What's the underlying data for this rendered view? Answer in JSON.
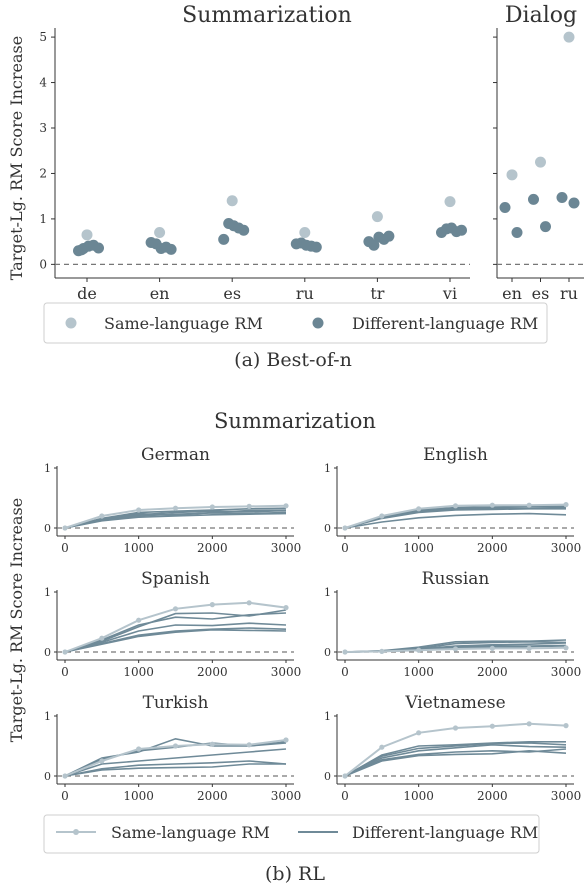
{
  "figure_a": {
    "caption": "(a) Best-of-n",
    "ylabel": "Target-Lg. RM Score Increase",
    "legend": {
      "same": "Same-language RM",
      "diff": "Different-language RM"
    }
  },
  "figure_b": {
    "title": "Summarization",
    "caption": "(b) RL",
    "ylabel": "Target-Lg. RM Score Increase",
    "legend": {
      "same": "Same-language RM",
      "diff": "Different-language RM"
    }
  },
  "colors": {
    "same": "#b5c4cc",
    "diff": "#6b8694",
    "line_diff": "#6f8a98",
    "zero": "#777777"
  },
  "chart_data": [
    {
      "type": "scatter",
      "title": "Summarization",
      "categories": [
        "de",
        "en",
        "es",
        "ru",
        "tr",
        "vi"
      ],
      "ylim": [
        -0.3,
        5.2
      ],
      "yticks": [
        0,
        1,
        2,
        3,
        4,
        5
      ],
      "series": [
        {
          "name": "Same-language RM",
          "values": [
            [
              0.65
            ],
            [
              0.7
            ],
            [
              1.4
            ],
            [
              0.7
            ],
            [
              1.05
            ],
            [
              1.38
            ]
          ]
        },
        {
          "name": "Different-language RM",
          "values": [
            [
              0.3,
              0.35,
              0.4,
              0.42,
              0.36,
              0.32
            ],
            [
              0.48,
              0.45,
              0.35,
              0.38,
              0.33
            ],
            [
              0.55,
              0.9,
              0.85,
              0.8,
              0.75
            ],
            [
              0.45,
              0.47,
              0.42,
              0.4,
              0.38
            ],
            [
              0.5,
              0.42,
              0.6,
              0.55,
              0.62
            ],
            [
              0.7,
              0.78,
              0.8,
              0.72,
              0.75
            ]
          ]
        }
      ]
    },
    {
      "type": "scatter",
      "title": "Dialog",
      "categories": [
        "en",
        "es",
        "ru"
      ],
      "ylim": [
        -0.3,
        5.2
      ],
      "series": [
        {
          "name": "Same-language RM",
          "values": [
            [
              1.97
            ],
            [
              2.25
            ],
            [
              5.0
            ]
          ]
        },
        {
          "name": "Different-language RM",
          "values": [
            [
              1.25,
              0.7
            ],
            [
              1.43,
              0.83
            ],
            [
              1.47,
              1.35
            ]
          ]
        }
      ]
    },
    {
      "type": "line",
      "title": "German",
      "x": [
        0,
        500,
        1000,
        1500,
        2000,
        2500,
        3000
      ],
      "ylim": [
        -0.15,
        1
      ],
      "xticks": [
        0,
        1000,
        2000,
        3000
      ],
      "yticks": [
        0,
        1
      ],
      "series": [
        {
          "name": "Same-language RM",
          "values": [
            0,
            0.2,
            0.3,
            0.33,
            0.35,
            0.36,
            0.37
          ]
        },
        {
          "name": "Different-language RM",
          "values": [
            0,
            0.16,
            0.26,
            0.28,
            0.3,
            0.32,
            0.33
          ]
        },
        {
          "name": "Different-language RM",
          "values": [
            0,
            0.14,
            0.22,
            0.26,
            0.28,
            0.27,
            0.29
          ]
        },
        {
          "name": "Different-language RM",
          "values": [
            0,
            0.13,
            0.2,
            0.23,
            0.25,
            0.24,
            0.26
          ]
        },
        {
          "name": "Different-language RM",
          "values": [
            0,
            0.12,
            0.18,
            0.2,
            0.22,
            0.23,
            0.24
          ]
        },
        {
          "name": "Different-language RM",
          "values": [
            0,
            0.15,
            0.24,
            0.21,
            0.26,
            0.29,
            0.3
          ]
        }
      ]
    },
    {
      "type": "line",
      "title": "English",
      "x": [
        0,
        500,
        1000,
        1500,
        2000,
        2500,
        3000
      ],
      "ylim": [
        -0.15,
        1
      ],
      "xticks": [
        0,
        1000,
        2000,
        3000
      ],
      "yticks": [
        0,
        1
      ],
      "series": [
        {
          "name": "Same-language RM",
          "values": [
            0,
            0.2,
            0.32,
            0.37,
            0.38,
            0.38,
            0.39
          ]
        },
        {
          "name": "Different-language RM",
          "values": [
            0,
            0.18,
            0.3,
            0.34,
            0.35,
            0.36,
            0.36
          ]
        },
        {
          "name": "Different-language RM",
          "values": [
            0,
            0.17,
            0.28,
            0.32,
            0.33,
            0.33,
            0.34
          ]
        },
        {
          "name": "Different-language RM",
          "values": [
            0,
            0.16,
            0.26,
            0.3,
            0.31,
            0.32,
            0.32
          ]
        },
        {
          "name": "Different-language RM",
          "values": [
            0,
            0.1,
            0.17,
            0.21,
            0.23,
            0.24,
            0.22
          ]
        }
      ]
    },
    {
      "type": "line",
      "title": "Spanish",
      "x": [
        0,
        500,
        1000,
        1500,
        2000,
        2500,
        3000
      ],
      "ylim": [
        -0.15,
        1
      ],
      "xticks": [
        0,
        1000,
        2000,
        3000
      ],
      "yticks": [
        0,
        1
      ],
      "series": [
        {
          "name": "Same-language RM",
          "values": [
            0,
            0.23,
            0.53,
            0.72,
            0.79,
            0.82,
            0.74
          ]
        },
        {
          "name": "Different-language RM",
          "values": [
            0,
            0.2,
            0.45,
            0.58,
            0.55,
            0.62,
            0.65
          ]
        },
        {
          "name": "Different-language RM",
          "values": [
            0,
            0.18,
            0.42,
            0.64,
            0.65,
            0.6,
            0.7
          ]
        },
        {
          "name": "Different-language RM",
          "values": [
            0,
            0.16,
            0.35,
            0.45,
            0.44,
            0.48,
            0.45
          ]
        },
        {
          "name": "Different-language RM",
          "values": [
            0,
            0.14,
            0.28,
            0.35,
            0.38,
            0.4,
            0.38
          ]
        },
        {
          "name": "Different-language RM",
          "values": [
            0,
            0.13,
            0.26,
            0.33,
            0.37,
            0.36,
            0.35
          ]
        }
      ]
    },
    {
      "type": "line",
      "title": "Russian",
      "x": [
        0,
        500,
        1000,
        1500,
        2000,
        2500,
        3000
      ],
      "ylim": [
        -0.15,
        1
      ],
      "xticks": [
        0,
        1000,
        2000,
        3000
      ],
      "yticks": [
        0,
        1
      ],
      "series": [
        {
          "name": "Same-language RM",
          "values": [
            0,
            0.01,
            0.03,
            0.05,
            0.06,
            0.06,
            0.07
          ]
        },
        {
          "name": "Different-language RM",
          "values": [
            0,
            0.02,
            0.08,
            0.17,
            0.18,
            0.18,
            0.2
          ]
        },
        {
          "name": "Different-language RM",
          "values": [
            0,
            0.02,
            0.06,
            0.14,
            0.16,
            0.17,
            0.16
          ]
        },
        {
          "name": "Different-language RM",
          "values": [
            0,
            0.01,
            0.05,
            0.1,
            0.12,
            0.13,
            0.15
          ]
        },
        {
          "name": "Different-language RM",
          "values": [
            0,
            0.01,
            0.04,
            0.08,
            0.1,
            0.1,
            0.11
          ]
        },
        {
          "name": "Different-language RM",
          "values": [
            0,
            0.01,
            0.03,
            0.06,
            0.08,
            0.09,
            0.1
          ]
        }
      ]
    },
    {
      "type": "line",
      "title": "Turkish",
      "x": [
        0,
        500,
        1000,
        1500,
        2000,
        2500,
        3000
      ],
      "ylim": [
        -0.15,
        1
      ],
      "xticks": [
        0,
        1000,
        2000,
        3000
      ],
      "yticks": [
        0,
        1
      ],
      "series": [
        {
          "name": "Same-language RM",
          "values": [
            0,
            0.25,
            0.45,
            0.5,
            0.53,
            0.52,
            0.6
          ]
        },
        {
          "name": "Different-language RM",
          "values": [
            0,
            0.3,
            0.4,
            0.62,
            0.5,
            0.5,
            0.55
          ]
        },
        {
          "name": "Different-language RM",
          "values": [
            0,
            0.28,
            0.42,
            0.48,
            0.55,
            0.5,
            0.57
          ]
        },
        {
          "name": "Different-language RM",
          "values": [
            0,
            0.2,
            0.25,
            0.3,
            0.35,
            0.4,
            0.45
          ]
        },
        {
          "name": "Different-language RM",
          "values": [
            0,
            0.12,
            0.18,
            0.2,
            0.22,
            0.25,
            0.2
          ]
        },
        {
          "name": "Different-language RM",
          "values": [
            0,
            0.1,
            0.13,
            0.14,
            0.15,
            0.2,
            0.2
          ]
        }
      ]
    },
    {
      "type": "line",
      "title": "Vietnamese",
      "x": [
        0,
        500,
        1000,
        1500,
        2000,
        2500,
        3000
      ],
      "ylim": [
        -0.15,
        1
      ],
      "xticks": [
        0,
        1000,
        2000,
        3000
      ],
      "yticks": [
        0,
        1
      ],
      "series": [
        {
          "name": "Same-language RM",
          "values": [
            0,
            0.48,
            0.72,
            0.8,
            0.83,
            0.87,
            0.84
          ]
        },
        {
          "name": "Different-language RM",
          "values": [
            0,
            0.35,
            0.5,
            0.52,
            0.55,
            0.57,
            0.57
          ]
        },
        {
          "name": "Different-language RM",
          "values": [
            0,
            0.33,
            0.46,
            0.5,
            0.54,
            0.55,
            0.52
          ]
        },
        {
          "name": "Different-language RM",
          "values": [
            0,
            0.3,
            0.42,
            0.47,
            0.52,
            0.49,
            0.48
          ]
        },
        {
          "name": "Different-language RM",
          "values": [
            0,
            0.27,
            0.36,
            0.4,
            0.42,
            0.4,
            0.45
          ]
        },
        {
          "name": "Different-language RM",
          "values": [
            0,
            0.25,
            0.34,
            0.36,
            0.37,
            0.42,
            0.38
          ]
        }
      ]
    }
  ]
}
